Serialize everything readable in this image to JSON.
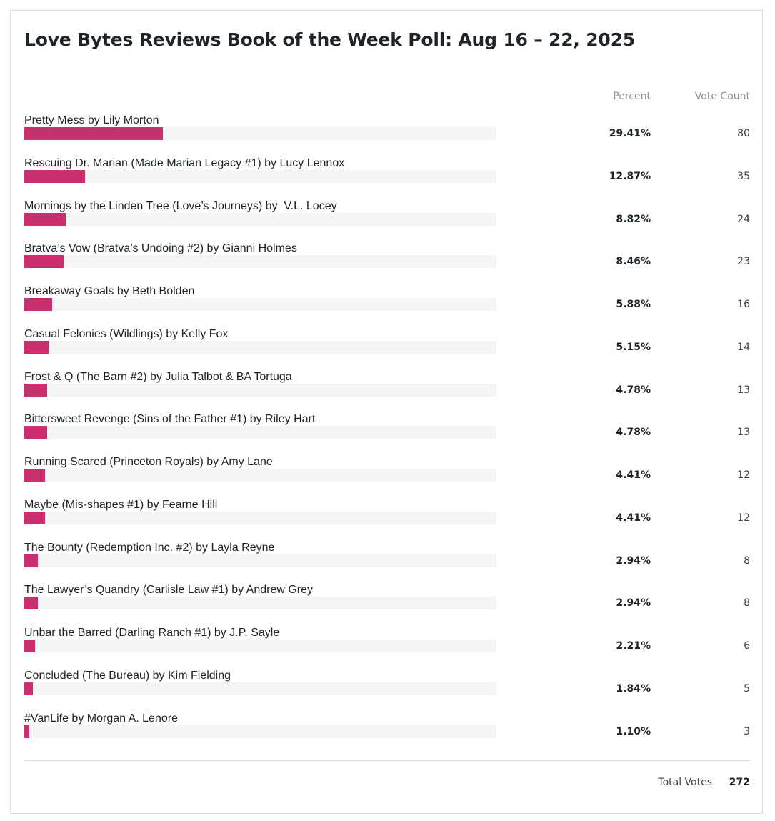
{
  "poll": {
    "title": "Love Bytes Reviews Book of the Week Poll: Aug 16 – 22, 2025",
    "headers": {
      "percent": "Percent",
      "vote_count": "Vote Count"
    },
    "total_label": "Total Votes",
    "total_value": "272"
  },
  "colors": {
    "bar_fill": "#c8306e",
    "bar_track": "#f4f5f5"
  },
  "chart_data": {
    "type": "bar",
    "orientation": "horizontal",
    "title": "Love Bytes Reviews Book of the Week Poll: Aug 16 – 22, 2025",
    "xlim": [
      0,
      100
    ],
    "categories": [
      "Pretty Mess by Lily Morton",
      "Rescuing Dr. Marian (Made Marian Legacy #1) by Lucy Lennox",
      "Mornings by the Linden Tree (Love’s Journeys) by  V.L. Locey",
      "Bratva’s Vow (Bratva’s Undoing #2) by Gianni Holmes",
      "Breakaway Goals by Beth Bolden",
      "Casual Felonies (Wildlings) by Kelly Fox",
      "Frost & Q (The Barn #2) by Julia Talbot & BA Tortuga",
      "Bittersweet Revenge (Sins of the Father #1) by Riley Hart",
      "Running Scared (Princeton Royals) by Amy Lane",
      "Maybe (Mis-shapes #1) by Fearne Hill",
      "The Bounty (Redemption Inc. #2) by Layla Reyne",
      "The Lawyer’s Quandry (Carlisle Law #1) by Andrew Grey",
      "Unbar the Barred (Darling Ranch #1) by J.P. Sayle",
      "Concluded (The Bureau) by Kim Fielding",
      "#VanLife by Morgan A. Lenore"
    ],
    "percents": [
      29.41,
      12.87,
      8.82,
      8.46,
      5.88,
      5.15,
      4.78,
      4.78,
      4.41,
      4.41,
      2.94,
      2.94,
      2.21,
      1.84,
      1.1
    ],
    "percent_labels": [
      "29.41%",
      "12.87%",
      "8.82%",
      "8.46%",
      "5.88%",
      "5.15%",
      "4.78%",
      "4.78%",
      "4.41%",
      "4.41%",
      "2.94%",
      "2.94%",
      "2.21%",
      "1.84%",
      "1.10%"
    ],
    "votes": [
      "80",
      "35",
      "24",
      "23",
      "16",
      "14",
      "13",
      "13",
      "12",
      "12",
      "8",
      "8",
      "6",
      "5",
      "3"
    ]
  }
}
